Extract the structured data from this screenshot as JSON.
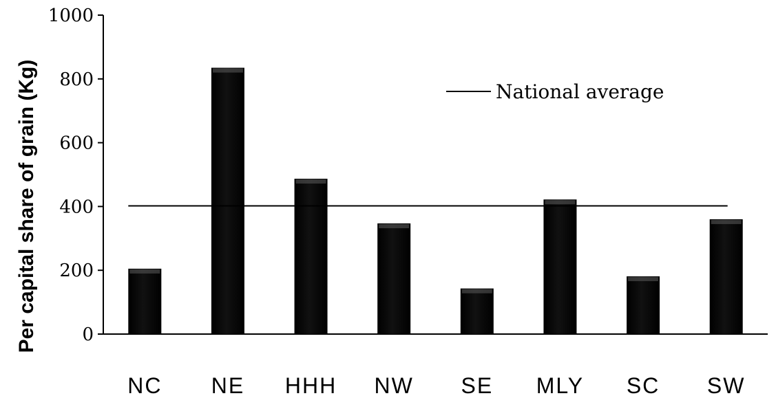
{
  "chart_data": {
    "type": "bar",
    "title": "",
    "xlabel": "",
    "ylabel": "Per capital share of grain (Kg)",
    "categories": [
      "NC",
      "NE",
      "HHH",
      "NW",
      "SE",
      "MLY",
      "SC",
      "SW"
    ],
    "values": [
      205,
      835,
      487,
      347,
      143,
      422,
      181,
      360
    ],
    "ylim": [
      0,
      1000
    ],
    "yticks": [
      "0",
      "200",
      "400",
      "600",
      "800",
      "1000"
    ],
    "reference_line": {
      "label": "National average",
      "value": 402
    },
    "legend_position": "top-right",
    "grid": false,
    "colors": {
      "bar": "#000000",
      "bar_highlight": "#555555",
      "line": "#000000"
    }
  }
}
